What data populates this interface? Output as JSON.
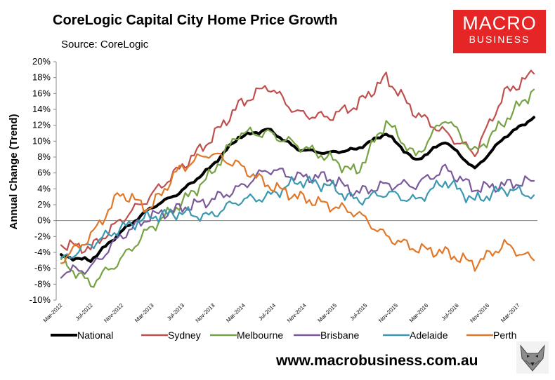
{
  "header": {
    "title": "CoreLogic Capital City Home Price Growth",
    "subtitle": "Source: CoreLogic"
  },
  "logo": {
    "line1": "MACRO",
    "line2": "BUSINESS",
    "color": "#e52526"
  },
  "footer": {
    "website": "www.macrobusiness.com.au"
  },
  "chart_data": {
    "type": "line",
    "ylabel": "Annual Change (Trend)",
    "ylim": [
      -10,
      20
    ],
    "y_ticks": [
      "-10%",
      "-8%",
      "-6%",
      "-4%",
      "-2%",
      "0%",
      "2%",
      "4%",
      "6%",
      "8%",
      "10%",
      "12%",
      "14%",
      "16%",
      "18%",
      "20%"
    ],
    "x_ticks": [
      "Mar-2012",
      "Jul-2012",
      "Nov-2012",
      "Mar-2013",
      "Jul-2013",
      "Nov-2013",
      "Mar-2014",
      "Jul-2014",
      "Nov-2014",
      "Mar-2015",
      "Jul-2015",
      "Nov-2015",
      "Mar-2016",
      "Jul-2016",
      "Nov-2016",
      "Mar-2017"
    ],
    "x": [
      "Mar-2012",
      "Jul-2012",
      "Nov-2012",
      "Mar-2013",
      "Jul-2013",
      "Nov-2013",
      "Mar-2014",
      "Jul-2014",
      "Nov-2014",
      "Mar-2015",
      "Jul-2015",
      "Nov-2015",
      "Mar-2016",
      "Jul-2016",
      "Nov-2016",
      "Mar-2017",
      "May-2017"
    ],
    "grid": false,
    "legend": "bottom",
    "series": [
      {
        "name": "National",
        "color": "#000000",
        "values": [
          -4.5,
          -5.0,
          -1.5,
          1.5,
          3.5,
          6.5,
          10.5,
          11.5,
          9.0,
          8.5,
          9.0,
          11.0,
          7.5,
          10.0,
          6.5,
          10.5,
          13.0
        ]
      },
      {
        "name": "Sydney",
        "color": "#c0504d",
        "values": [
          -3.0,
          -3.5,
          0.0,
          3.0,
          6.5,
          10.0,
          14.5,
          17.0,
          13.5,
          13.0,
          14.5,
          18.0,
          13.5,
          11.0,
          8.5,
          16.0,
          18.5
        ]
      },
      {
        "name": "Melbourne",
        "color": "#77a244",
        "values": [
          -5.0,
          -8.0,
          -5.0,
          -1.0,
          2.0,
          5.5,
          11.0,
          11.0,
          9.5,
          8.0,
          6.0,
          12.5,
          8.0,
          13.0,
          8.5,
          12.5,
          16.5
        ]
      },
      {
        "name": "Brisbane",
        "color": "#7a5a9a",
        "values": [
          -6.5,
          -6.0,
          -2.0,
          0.5,
          1.5,
          2.5,
          4.0,
          6.5,
          5.5,
          5.5,
          3.5,
          4.5,
          4.5,
          6.5,
          4.0,
          4.5,
          5.0
        ]
      },
      {
        "name": "Adelaide",
        "color": "#3a98b0",
        "values": [
          -5.0,
          -3.0,
          -1.0,
          0.5,
          1.0,
          0.5,
          2.5,
          3.0,
          5.0,
          4.5,
          2.5,
          3.5,
          2.5,
          5.0,
          2.5,
          4.0,
          3.2
        ]
      },
      {
        "name": "Perth",
        "color": "#e0782a",
        "values": [
          -5.0,
          -2.0,
          3.5,
          1.5,
          6.5,
          8.5,
          7.0,
          4.5,
          3.0,
          2.0,
          1.0,
          -2.0,
          -3.5,
          -4.0,
          -5.5,
          -3.0,
          -5.0
        ]
      }
    ]
  }
}
